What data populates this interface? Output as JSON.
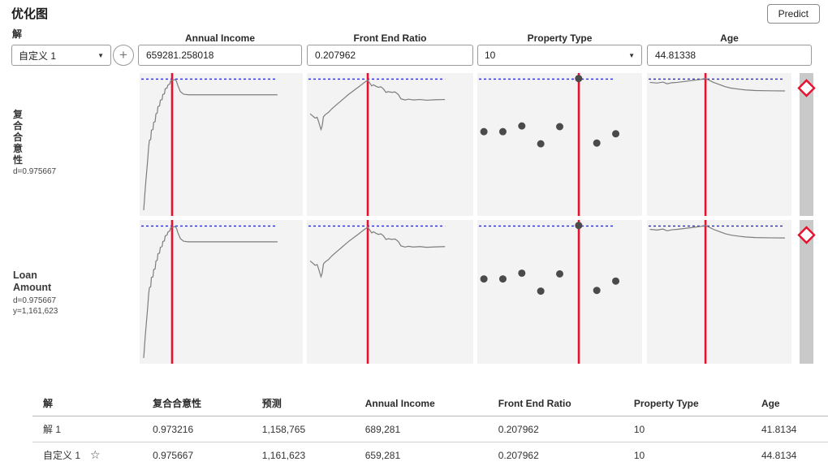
{
  "header": {
    "title": "优化图",
    "predict_label": "Predict"
  },
  "controls": {
    "solution_label": "解",
    "solution_selected": "自定义 1",
    "add_icon": "+",
    "caret_icon": "▼"
  },
  "factors": [
    {
      "name": "Annual Income",
      "value": "659281.258018",
      "control": "input"
    },
    {
      "name": "Front End Ratio",
      "value": "0.207962",
      "control": "input"
    },
    {
      "name": "Property Type",
      "value": "10",
      "control": "select"
    },
    {
      "name": "Age",
      "value": "44.81338",
      "control": "input"
    }
  ],
  "responses": [
    {
      "label_chars": [
        "复",
        "合",
        "合",
        "意",
        "性"
      ],
      "stats": [
        "d=0.975667"
      ]
    },
    {
      "label_lines": [
        "Loan",
        "Amount"
      ],
      "stats": [
        "d=0.975667",
        "y=1,161,623"
      ]
    }
  ],
  "chart_data": {
    "type": "line",
    "description": "Prediction profiler: 2 response rows × 4 factor columns; both rows show identical traces. Coordinates normalized 0–1 of each plot cell, y measured from top.",
    "colors": {
      "curve": "#7d7d7d",
      "red_line": "#e8112d",
      "blue_dotted": "#2a2ad0",
      "dot": "#4a4a4a",
      "plot_bg": "#f3f3f3",
      "strip_bg": "#c9c9c9",
      "diamond": "#e8112d"
    },
    "blue_line_y": 0.042,
    "columns": [
      {
        "factor": "Annual Income",
        "type": "curve",
        "red_line_x": 0.199,
        "xmax": 0.845,
        "points": [
          [
            0.025,
            0.96
          ],
          [
            0.035,
            0.8
          ],
          [
            0.05,
            0.6
          ],
          [
            0.055,
            0.52
          ],
          [
            0.06,
            0.47
          ],
          [
            0.068,
            0.465
          ],
          [
            0.072,
            0.4
          ],
          [
            0.082,
            0.395
          ],
          [
            0.086,
            0.345
          ],
          [
            0.095,
            0.34
          ],
          [
            0.1,
            0.285
          ],
          [
            0.108,
            0.28
          ],
          [
            0.112,
            0.235
          ],
          [
            0.122,
            0.23
          ],
          [
            0.127,
            0.19
          ],
          [
            0.138,
            0.185
          ],
          [
            0.142,
            0.15
          ],
          [
            0.152,
            0.145
          ],
          [
            0.157,
            0.11
          ],
          [
            0.168,
            0.105
          ],
          [
            0.173,
            0.085
          ],
          [
            0.185,
            0.075
          ],
          [
            0.19,
            0.055
          ],
          [
            0.205,
            0.05
          ],
          [
            0.215,
            0.045
          ],
          [
            0.225,
            0.055
          ],
          [
            0.235,
            0.09
          ],
          [
            0.25,
            0.13
          ],
          [
            0.27,
            0.148
          ],
          [
            0.3,
            0.152
          ],
          [
            0.845,
            0.152
          ]
        ]
      },
      {
        "factor": "Front End Ratio",
        "type": "curve",
        "red_line_x": 0.366,
        "xmax": 0.83,
        "points": [
          [
            0.02,
            0.285
          ],
          [
            0.035,
            0.3
          ],
          [
            0.05,
            0.315
          ],
          [
            0.062,
            0.31
          ],
          [
            0.072,
            0.345
          ],
          [
            0.085,
            0.395
          ],
          [
            0.092,
            0.37
          ],
          [
            0.1,
            0.305
          ],
          [
            0.112,
            0.29
          ],
          [
            0.13,
            0.275
          ],
          [
            0.15,
            0.25
          ],
          [
            0.17,
            0.23
          ],
          [
            0.19,
            0.21
          ],
          [
            0.21,
            0.19
          ],
          [
            0.23,
            0.17
          ],
          [
            0.25,
            0.15
          ],
          [
            0.27,
            0.133
          ],
          [
            0.29,
            0.115
          ],
          [
            0.31,
            0.098
          ],
          [
            0.33,
            0.08
          ],
          [
            0.35,
            0.062
          ],
          [
            0.366,
            0.05
          ],
          [
            0.378,
            0.07
          ],
          [
            0.39,
            0.09
          ],
          [
            0.4,
            0.082
          ],
          [
            0.415,
            0.092
          ],
          [
            0.43,
            0.1
          ],
          [
            0.445,
            0.096
          ],
          [
            0.46,
            0.11
          ],
          [
            0.475,
            0.135
          ],
          [
            0.49,
            0.13
          ],
          [
            0.51,
            0.135
          ],
          [
            0.53,
            0.132
          ],
          [
            0.55,
            0.15
          ],
          [
            0.565,
            0.18
          ],
          [
            0.59,
            0.188
          ],
          [
            0.61,
            0.183
          ],
          [
            0.64,
            0.188
          ],
          [
            0.68,
            0.185
          ],
          [
            0.72,
            0.19
          ],
          [
            0.77,
            0.187
          ],
          [
            0.83,
            0.185
          ]
        ]
      },
      {
        "factor": "Property Type",
        "type": "dots",
        "red_line_x": 0.616,
        "xmax": 0.837,
        "points": [
          [
            0.04,
            0.41
          ],
          [
            0.155,
            0.41
          ],
          [
            0.27,
            0.37
          ],
          [
            0.385,
            0.495
          ],
          [
            0.5,
            0.375
          ],
          [
            0.615,
            0.038
          ],
          [
            0.725,
            0.49
          ],
          [
            0.84,
            0.425
          ]
        ]
      },
      {
        "factor": "Age",
        "type": "curve",
        "red_line_x": 0.405,
        "xmax": 0.955,
        "points": [
          [
            0.02,
            0.065
          ],
          [
            0.07,
            0.07
          ],
          [
            0.11,
            0.063
          ],
          [
            0.14,
            0.075
          ],
          [
            0.17,
            0.068
          ],
          [
            0.21,
            0.065
          ],
          [
            0.25,
            0.06
          ],
          [
            0.29,
            0.055
          ],
          [
            0.33,
            0.05
          ],
          [
            0.37,
            0.045
          ],
          [
            0.405,
            0.038
          ],
          [
            0.43,
            0.05
          ],
          [
            0.46,
            0.065
          ],
          [
            0.5,
            0.08
          ],
          [
            0.54,
            0.095
          ],
          [
            0.58,
            0.105
          ],
          [
            0.63,
            0.112
          ],
          [
            0.68,
            0.118
          ],
          [
            0.75,
            0.122
          ],
          [
            0.85,
            0.124
          ],
          [
            0.955,
            0.125
          ]
        ]
      }
    ]
  },
  "table": {
    "headers": [
      "解",
      "复合合意性",
      "预测",
      "Annual Income",
      "Front End Ratio",
      "Property Type",
      "Age"
    ],
    "star_icon": "☆",
    "rows": [
      {
        "cells": [
          "解 1",
          "0.973216",
          "1,158,765",
          "689,281",
          "0.207962",
          "10",
          "41.8134"
        ],
        "starred": false
      },
      {
        "cells": [
          "自定义 1",
          "0.975667",
          "1,161,623",
          "659,281",
          "0.207962",
          "10",
          "44.8134"
        ],
        "starred": true
      }
    ]
  }
}
